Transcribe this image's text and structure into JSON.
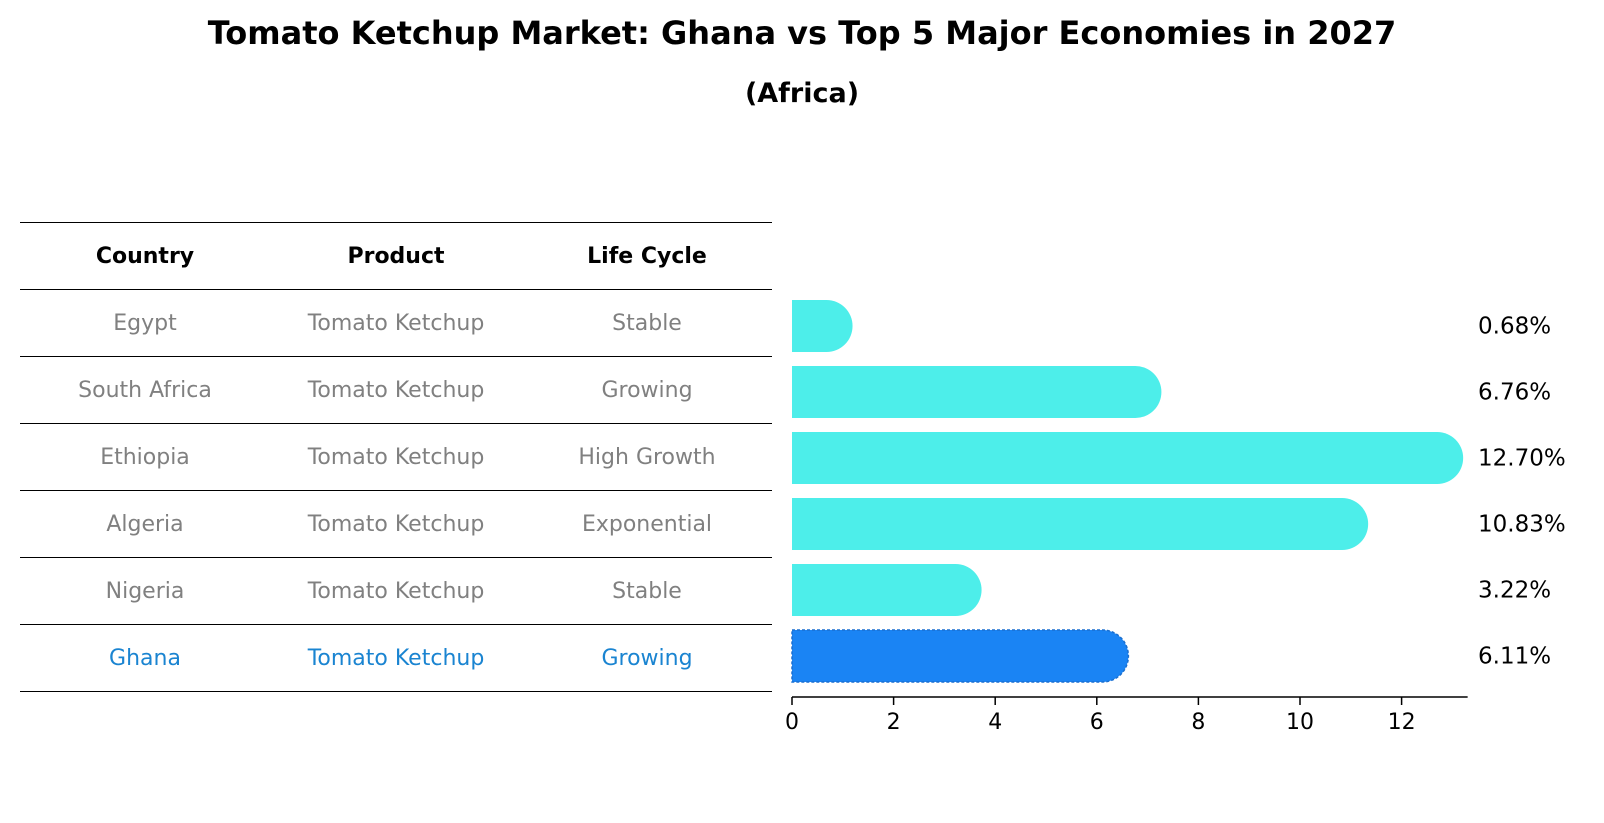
{
  "header": {
    "title": "Tomato Ketchup Market: Ghana vs Top 5 Major Economies in 2027",
    "subtitle": "(Africa)"
  },
  "table": {
    "columns": [
      "Country",
      "Product",
      "Life Cycle"
    ],
    "rows": [
      {
        "country": "Egypt",
        "product": "Tomato Ketchup",
        "life_cycle": "Stable"
      },
      {
        "country": "South Africa",
        "product": "Tomato Ketchup",
        "life_cycle": "Growing"
      },
      {
        "country": "Ethiopia",
        "product": "Tomato Ketchup",
        "life_cycle": "High Growth"
      },
      {
        "country": "Algeria",
        "product": "Tomato Ketchup",
        "life_cycle": "Exponential"
      },
      {
        "country": "Nigeria",
        "product": "Tomato Ketchup",
        "life_cycle": "Stable"
      },
      {
        "country": "Ghana",
        "product": "Tomato Ketchup",
        "life_cycle": "Growing"
      }
    ]
  },
  "colors": {
    "bar": "#4deeea",
    "highlight_bar": "#1a84f4",
    "highlight_text": "#1a84d1",
    "muted_text": "#808080"
  },
  "chart_data": {
    "type": "bar",
    "orientation": "horizontal",
    "categories": [
      "Egypt",
      "South Africa",
      "Ethiopia",
      "Algeria",
      "Nigeria",
      "Ghana"
    ],
    "values": [
      0.68,
      6.76,
      12.7,
      10.83,
      3.22,
      6.11
    ],
    "value_labels": [
      "0.68%",
      "6.76%",
      "12.70%",
      "10.83%",
      "3.22%",
      "6.11%"
    ],
    "highlight": "Ghana",
    "xlim": [
      0,
      13.3
    ],
    "xticks": [
      0,
      2,
      4,
      6,
      8,
      10,
      12
    ],
    "xlabel": "",
    "ylabel": "",
    "grid": false
  }
}
